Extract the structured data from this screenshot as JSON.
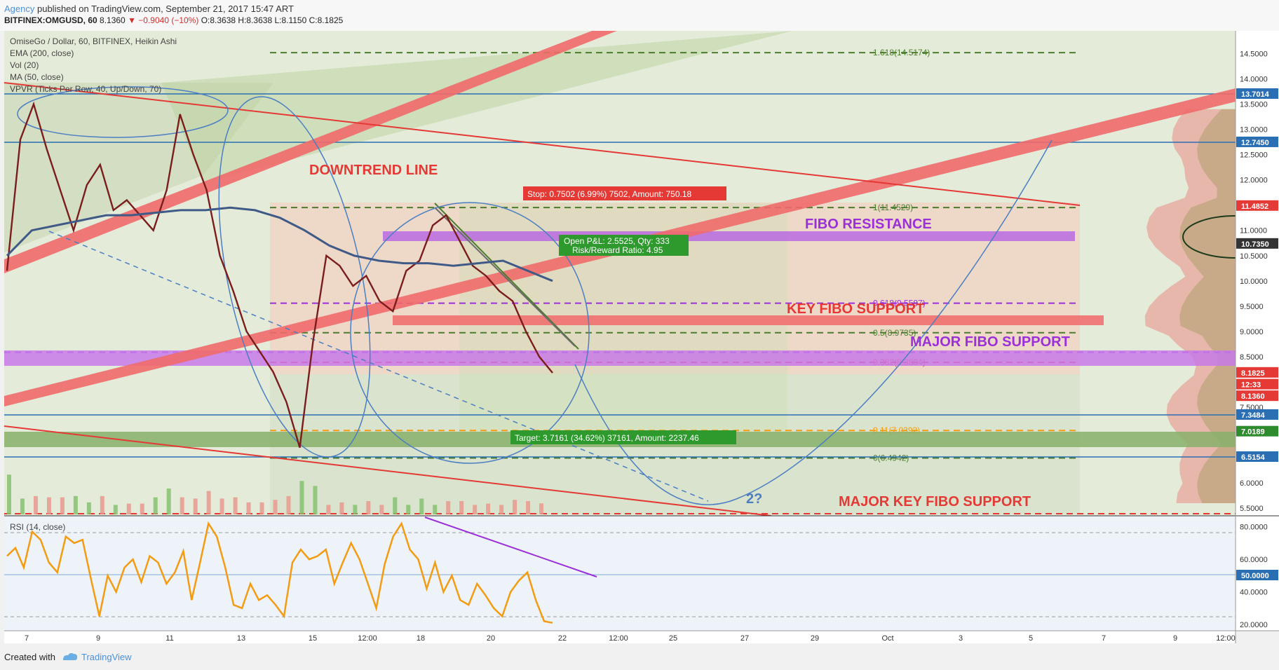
{
  "header": {
    "author": "Agency",
    "published_text": " published on TradingView.com, September 21, 2017 15:47 ART",
    "symbol_line": "BITFINEX:OMGUSD, 60",
    "last_price": "8.1360",
    "change": "▼ −0.9040 (−10%)",
    "ohlc": "O:8.3638 H:8.3638 L:8.1150 C:8.1825"
  },
  "legend": {
    "title": "OmiseGo / Dollar, 60, BITFINEX, Heikin Ashi",
    "ema": "EMA (200, close)",
    "vol": "Vol (20)",
    "ma": "MA (50, close)",
    "vpvr": "VPVR (Ticks Per Row, 40, Up/Down, 70)",
    "rsi": "RSI (14, close)"
  },
  "annotations": {
    "downtrend": "DOWNTREND LINE",
    "fibo_resistance": "FIBO RESISTANCE",
    "key_fibo": "KEY FIBO SUPPORT",
    "major_fibo": "MAJOR FIBO SUPPORT",
    "major_key_fibo": "MAJOR KEY FIBO SUPPORT",
    "question": "2?"
  },
  "position": {
    "stop": "Stop: 0.7502 (6.99%) 7502, Amount: 750.18",
    "pnl": "Open P&L: 2.5525, Qty: 333",
    "rr": "Risk/Reward Ratio: 4.95",
    "target": "Target: 3.7161 (34.62%) 37161, Amount: 2237.46"
  },
  "fib_levels": [
    {
      "label": "1.618(14.5174)",
      "price": 14.5174,
      "color": "#4c7d2e"
    },
    {
      "label": "1(11.4529)",
      "price": 11.4529,
      "color": "#4c7d2e"
    },
    {
      "label": "0.618(9.5587)",
      "price": 9.5587,
      "color": "#9b30d9"
    },
    {
      "label": "0.5(8.9735)",
      "price": 8.9735,
      "color": "#4c7d2e"
    },
    {
      "label": "0.382(8.3884)",
      "price": 8.3884,
      "color": "#e53935"
    },
    {
      "label": "0.11(7.0392)",
      "price": 7.0392,
      "color": "#f39c12"
    },
    {
      "label": "0(6.4942)",
      "price": 6.4942,
      "color": "#4c7d2e"
    }
  ],
  "price_badges": [
    {
      "text": "13.7014",
      "price": 13.7014,
      "color": "#2a6fb3"
    },
    {
      "text": "12.7450",
      "price": 12.745,
      "color": "#2a6fb3"
    },
    {
      "text": "11.4852",
      "price": 11.4852,
      "color": "#e53935"
    },
    {
      "text": "10.7350",
      "price": 10.735,
      "color": "#333333"
    },
    {
      "text": "8.1825",
      "price": 8.1825,
      "color": "#e53935"
    },
    {
      "text": "12:33",
      "price": 7.95,
      "color": "#e53935"
    },
    {
      "text": "8.1360",
      "price": 7.72,
      "color": "#e53935"
    },
    {
      "text": "7.3484",
      "price": 7.3484,
      "color": "#2a6fb3"
    },
    {
      "text": "7.0189",
      "price": 7.0189,
      "color": "#2e8b2e"
    },
    {
      "text": "6.5154",
      "price": 6.5154,
      "color": "#2a6fb3"
    }
  ],
  "rsi_badge": "50.0000",
  "chart_data": {
    "type": "line",
    "title": "OmiseGo / Dollar, 60, BITFINEX, Heikin Ashi",
    "ylim": [
      5.35,
      14.95
    ],
    "y_ticks": [
      "14.5000",
      "14.0000",
      "13.5000",
      "13.0000",
      "12.5000",
      "12.0000",
      "11.5000",
      "11.0000",
      "10.5000",
      "10.0000",
      "9.5000",
      "9.0000",
      "8.5000",
      "8.0000",
      "7.5000",
      "7.0000",
      "6.5000",
      "6.0000",
      "5.5000"
    ],
    "x_ticks": [
      "7",
      "9",
      "11",
      "13",
      "15",
      "12:00",
      "18",
      "20",
      "22",
      "12:00",
      "25",
      "27",
      "29",
      "Oct",
      "3",
      "5",
      "7",
      "9",
      "12:00"
    ],
    "price_series": [
      10.2,
      12.8,
      13.5,
      12.6,
      11.8,
      11.0,
      11.9,
      12.3,
      11.4,
      11.6,
      11.3,
      11.0,
      11.8,
      13.3,
      12.5,
      11.8,
      10.5,
      9.8,
      9.0,
      8.6,
      8.2,
      7.6,
      6.7,
      8.8,
      10.5,
      10.3,
      9.9,
      10.1,
      9.6,
      9.4,
      10.2,
      10.4,
      11.1,
      11.3,
      10.8,
      10.3,
      10.1,
      9.8,
      9.6,
      9.0,
      8.5,
      8.18
    ],
    "ema200": [
      10.5,
      11.0,
      11.1,
      11.2,
      11.3,
      11.3,
      11.35,
      11.4,
      11.4,
      11.45,
      11.4,
      11.25,
      11.0,
      10.7,
      10.5,
      10.4,
      10.35,
      10.35,
      10.3,
      10.35,
      10.4,
      10.2,
      10.0
    ],
    "rsi": {
      "ylim": [
        17,
        85
      ],
      "y_ticks": [
        "80.0000",
        "60.0000",
        "50.0000",
        "40.0000",
        "20.0000"
      ],
      "values": [
        62,
        67,
        55,
        77,
        72,
        58,
        52,
        74,
        70,
        72,
        48,
        25,
        50,
        40,
        55,
        60,
        46,
        62,
        58,
        45,
        52,
        65,
        35,
        58,
        82,
        74,
        55,
        32,
        30,
        45,
        35,
        38,
        32,
        25,
        58,
        66,
        60,
        62,
        66,
        45,
        58,
        70,
        60,
        45,
        30,
        57,
        74,
        82,
        66,
        60,
        42,
        58,
        40,
        50,
        35,
        32,
        45,
        38,
        30,
        25,
        40,
        47,
        52,
        35,
        22,
        21
      ],
      "trend_label": ""
    }
  }
}
